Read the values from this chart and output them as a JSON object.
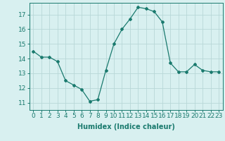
{
  "x": [
    0,
    1,
    2,
    3,
    4,
    5,
    6,
    7,
    8,
    9,
    10,
    11,
    12,
    13,
    14,
    15,
    16,
    17,
    18,
    19,
    20,
    21,
    22,
    23
  ],
  "y": [
    14.5,
    14.1,
    14.1,
    13.8,
    12.5,
    12.2,
    11.9,
    11.1,
    11.2,
    13.2,
    15.0,
    16.0,
    16.7,
    17.5,
    17.4,
    17.2,
    16.5,
    13.7,
    13.1,
    13.1,
    13.6,
    13.2,
    13.1,
    13.1
  ],
  "line_color": "#1a7a6e",
  "marker": "D",
  "marker_size": 2,
  "bg_color": "#d8f0f0",
  "grid_color": "#b8d8d8",
  "xlabel": "Humidex (Indice chaleur)",
  "ylabel_ticks": [
    11,
    12,
    13,
    14,
    15,
    16,
    17
  ],
  "ylim": [
    10.5,
    17.8
  ],
  "xlim": [
    -0.5,
    23.5
  ],
  "xtick_labels": [
    "0",
    "1",
    "2",
    "3",
    "4",
    "5",
    "6",
    "7",
    "8",
    "9",
    "10",
    "11",
    "12",
    "13",
    "14",
    "15",
    "16",
    "17",
    "18",
    "19",
    "20",
    "21",
    "22",
    "23"
  ],
  "label_fontsize": 7,
  "tick_fontsize": 6.5
}
